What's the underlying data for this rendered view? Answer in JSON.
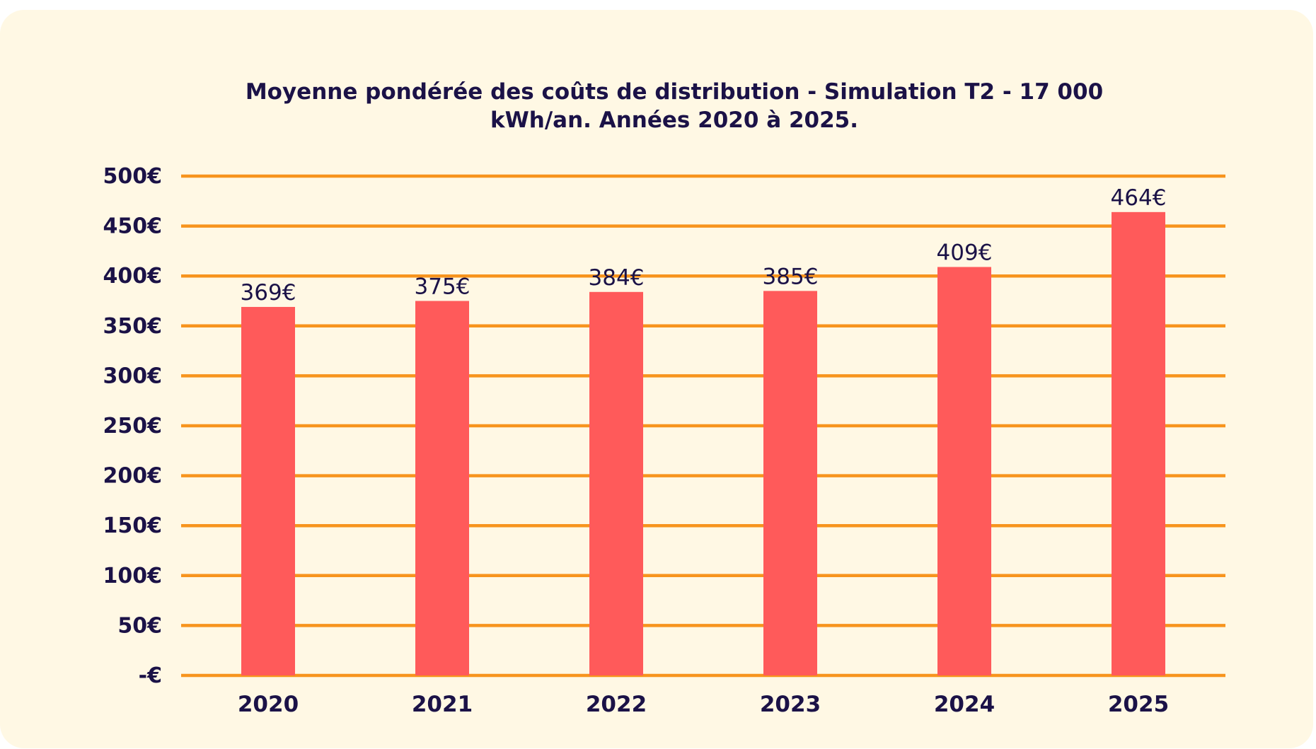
{
  "chart_data": {
    "type": "bar",
    "title_lines": [
      "Moyenne pondérée des coûts de distribution - Simulation T2 - 17 000",
      "kWh/an. Années 2020 à 2025."
    ],
    "categories": [
      "2020",
      "2021",
      "2022",
      "2023",
      "2024",
      "2025"
    ],
    "values": [
      369,
      375,
      384,
      385,
      409,
      464
    ],
    "data_labels": [
      "369€",
      "375€",
      "384€",
      "385€",
      "409€",
      "464€"
    ],
    "y_ticks": [
      {
        "value": 0,
        "label": "-€"
      },
      {
        "value": 50,
        "label": "50€"
      },
      {
        "value": 100,
        "label": "100€"
      },
      {
        "value": 150,
        "label": "150€"
      },
      {
        "value": 200,
        "label": "200€"
      },
      {
        "value": 250,
        "label": "250€"
      },
      {
        "value": 300,
        "label": "300€"
      },
      {
        "value": 350,
        "label": "350€"
      },
      {
        "value": 400,
        "label": "400€"
      },
      {
        "value": 450,
        "label": "450€"
      },
      {
        "value": 500,
        "label": "500€"
      }
    ],
    "ylim": [
      0,
      500
    ],
    "grid": true,
    "legend": "none",
    "colors": {
      "bar": "#ff5a5a",
      "grid": "#f7941d",
      "text": "#1b1247",
      "background": "#fff8e4"
    }
  }
}
